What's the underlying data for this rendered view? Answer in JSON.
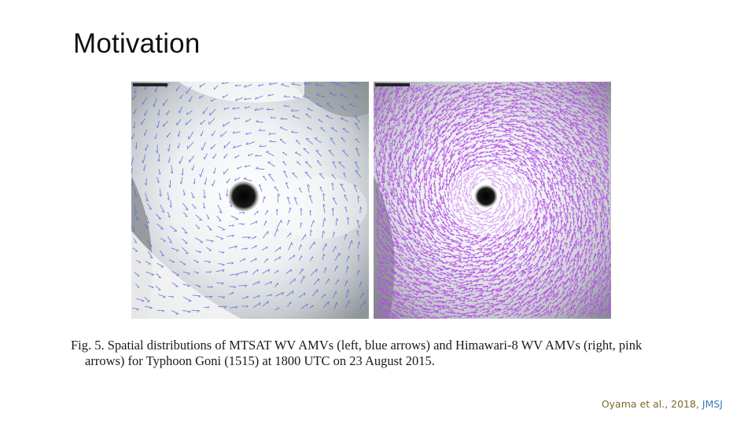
{
  "slide": {
    "title": "Motivation"
  },
  "figure": {
    "caption_line1": "Fig. 5.   Spatial distributions of MTSAT WV AMVs (left, blue arrows) and Himawari-8 WV AMVs (right, pink",
    "caption_line2": "arrows) for Typhoon Goni (1515) at 1800 UTC on 23 August 2015.",
    "panels": [
      {
        "name": "left",
        "arrow_color": "#5a6fd8"
      },
      {
        "name": "right",
        "arrow_color": "#b44ce6"
      }
    ]
  },
  "citation": {
    "authors": "Oyama et al., 2018,",
    "journal": "JMSJ"
  },
  "colors": {
    "cloud_white": "#f4f5f6",
    "background_gray": "#8c9096",
    "eye": "#111111",
    "mtsat_arrows": "#5a6fd8",
    "himawari_arrows": "#b44ce6"
  }
}
